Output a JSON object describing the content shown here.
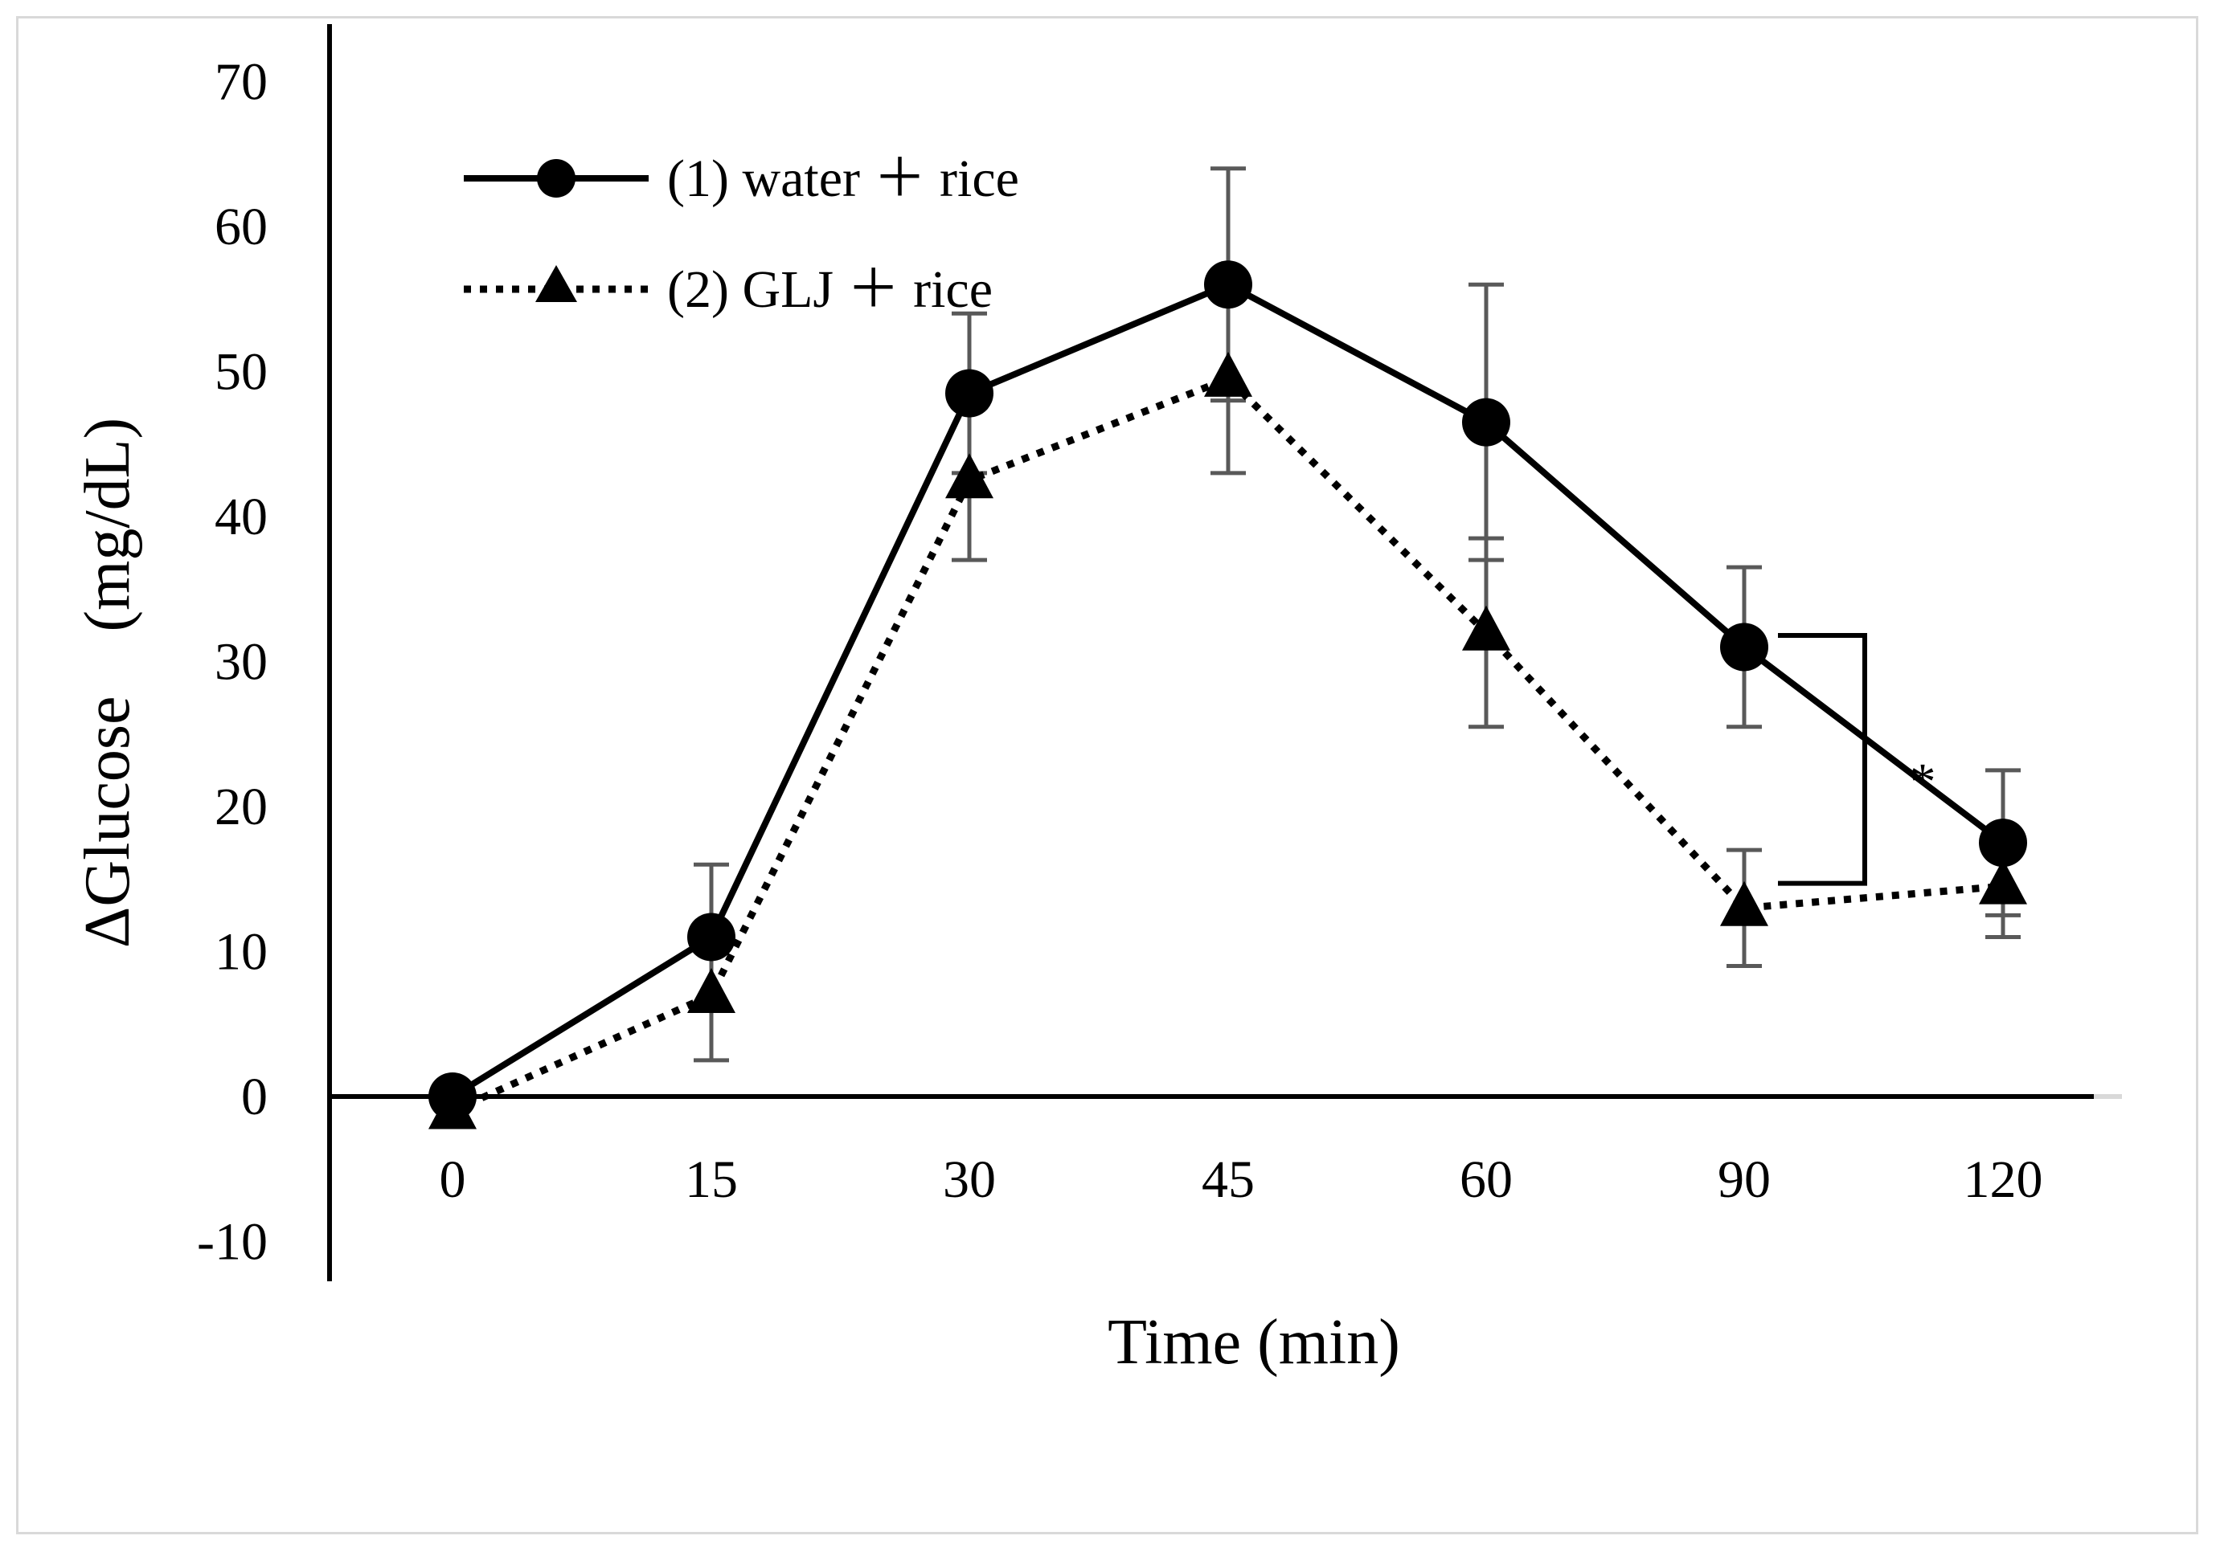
{
  "chart_data": {
    "type": "line",
    "title": "",
    "xlabel": "Time (min)",
    "ylabel": "ΔGlucose　(mg/dL)",
    "categories": [
      "0",
      "15",
      "30",
      "45",
      "60",
      "90",
      "120"
    ],
    "ylim": [
      -10,
      70
    ],
    "yticks": [
      "70",
      "60",
      "50",
      "40",
      "30",
      "20",
      "10",
      "0",
      "-10"
    ],
    "legend_position": "top-left",
    "series": [
      {
        "name": "(1) water ＋ rice",
        "marker": "circle",
        "line_style": "solid",
        "values": [
          0,
          11,
          48.5,
          56,
          46.5,
          31,
          17.5
        ],
        "error": [
          0,
          5,
          5.5,
          8,
          9.5,
          5.5,
          5
        ]
      },
      {
        "name": "(2) GLJ ＋ rice",
        "marker": "triangle",
        "line_style": "dotted",
        "values": [
          -1,
          7,
          42.5,
          49.5,
          32,
          13,
          14.5
        ],
        "error": [
          0,
          4.5,
          5.5,
          6.5,
          6.5,
          4,
          3.5
        ]
      }
    ],
    "annotations": [
      {
        "text": "*",
        "between": [
          "90",
          "120"
        ],
        "type": "significance"
      }
    ],
    "colors": {
      "line": "#000000",
      "error_bar": "#595959",
      "zero_line_ext": "#d9d9d9"
    }
  }
}
